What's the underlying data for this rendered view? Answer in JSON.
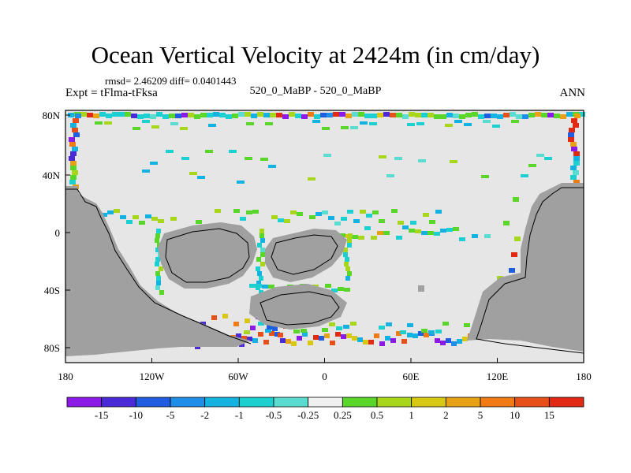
{
  "title": "Ocean Vertical Velocity at 2424m (in cm/day)",
  "stats_line": "rmsd= 2.46209  diff= 0.0401443",
  "experiment_label": "Expt = tFlma-tFksa",
  "center_label": "520_0_MaBP - 520_0_MaBP",
  "season_label": "ANN",
  "colors": {
    "land": "#a0a0a0",
    "neutral": "#e6e6e6",
    "coast_line": "#000000"
  },
  "map": {
    "x_ticks": [
      "180",
      "120W",
      "60W",
      "0",
      "60E",
      "120E",
      "180"
    ],
    "y_ticks": [
      "80N",
      "40N",
      "0",
      "40S",
      "80S"
    ]
  },
  "colorbar": {
    "labels": [
      "-15",
      "-10",
      "-5",
      "-2",
      "-1",
      "-0.5",
      "-0.25",
      "0.25",
      "0.5",
      "1",
      "2",
      "5",
      "10",
      "15"
    ],
    "colors": [
      "#8c1ae6",
      "#4a2ad6",
      "#1f5ee0",
      "#1f8ee8",
      "#14b2e0",
      "#1ccfd0",
      "#5adcd0",
      "#f0f0f0",
      "#5ad62a",
      "#a8d61a",
      "#d8c814",
      "#e8a014",
      "#f07a14",
      "#e8501a",
      "#e02a14"
    ]
  }
}
